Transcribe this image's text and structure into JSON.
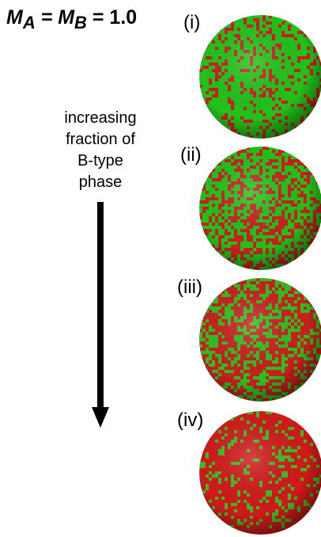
{
  "header": {
    "title_parts": [
      "M",
      "A",
      " = M",
      "B",
      " = 1.0"
    ]
  },
  "arrow": {
    "label_lines": [
      "increasing",
      "fraction of",
      "B-type",
      "phase"
    ]
  },
  "panels": [
    {
      "label": "(i)"
    },
    {
      "label": "(ii)"
    },
    {
      "label": "(iii)"
    },
    {
      "label": "(iv)"
    }
  ]
}
